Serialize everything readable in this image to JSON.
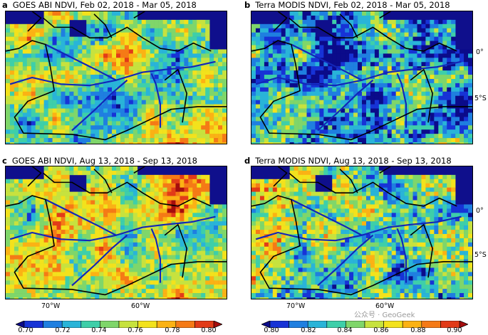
{
  "panels": [
    {
      "letter": "a",
      "title": "GOES ABI NDVI, Feb 02, 2018 - Mar 05, 2018",
      "scale": "goes",
      "bias": 0.55
    },
    {
      "letter": "b",
      "title": "Terra MODIS NDVI, Feb 02, 2018 - Mar 05, 2018",
      "scale": "modis",
      "bias": 0.3
    },
    {
      "letter": "c",
      "title": "GOES ABI NDVI, Aug 13, 2018 - Sep 13, 2018",
      "scale": "goes",
      "bias": 0.62
    },
    {
      "letter": "d",
      "title": "Terra MODIS NDVI, Aug 13, 2018 - Sep 13, 2018",
      "scale": "modis",
      "bias": 0.5
    }
  ],
  "lat_ticks": [
    "0°",
    "5°S"
  ],
  "lon_ticks": [
    "70°W",
    "60°W"
  ],
  "colorbars": {
    "goes": {
      "labels": [
        "0.70",
        "0.72",
        "0.74",
        "0.76",
        "0.78",
        "0.80"
      ],
      "extend": "both"
    },
    "modis": {
      "labels": [
        "0.80",
        "0.82",
        "0.84",
        "0.86",
        "0.88",
        "0.90"
      ],
      "extend": "both"
    }
  },
  "colormap": [
    "#0b0b8a",
    "#1733d6",
    "#1f7fe0",
    "#29b4d8",
    "#3ecfa9",
    "#7fd66a",
    "#c7e23e",
    "#f3e21c",
    "#fbb214",
    "#f57a16",
    "#e23b18",
    "#a50d0d"
  ],
  "colors": {
    "ocean": "#0f0f8c",
    "border": "#000000"
  },
  "watermark": "公众号 · GeoGeek"
}
